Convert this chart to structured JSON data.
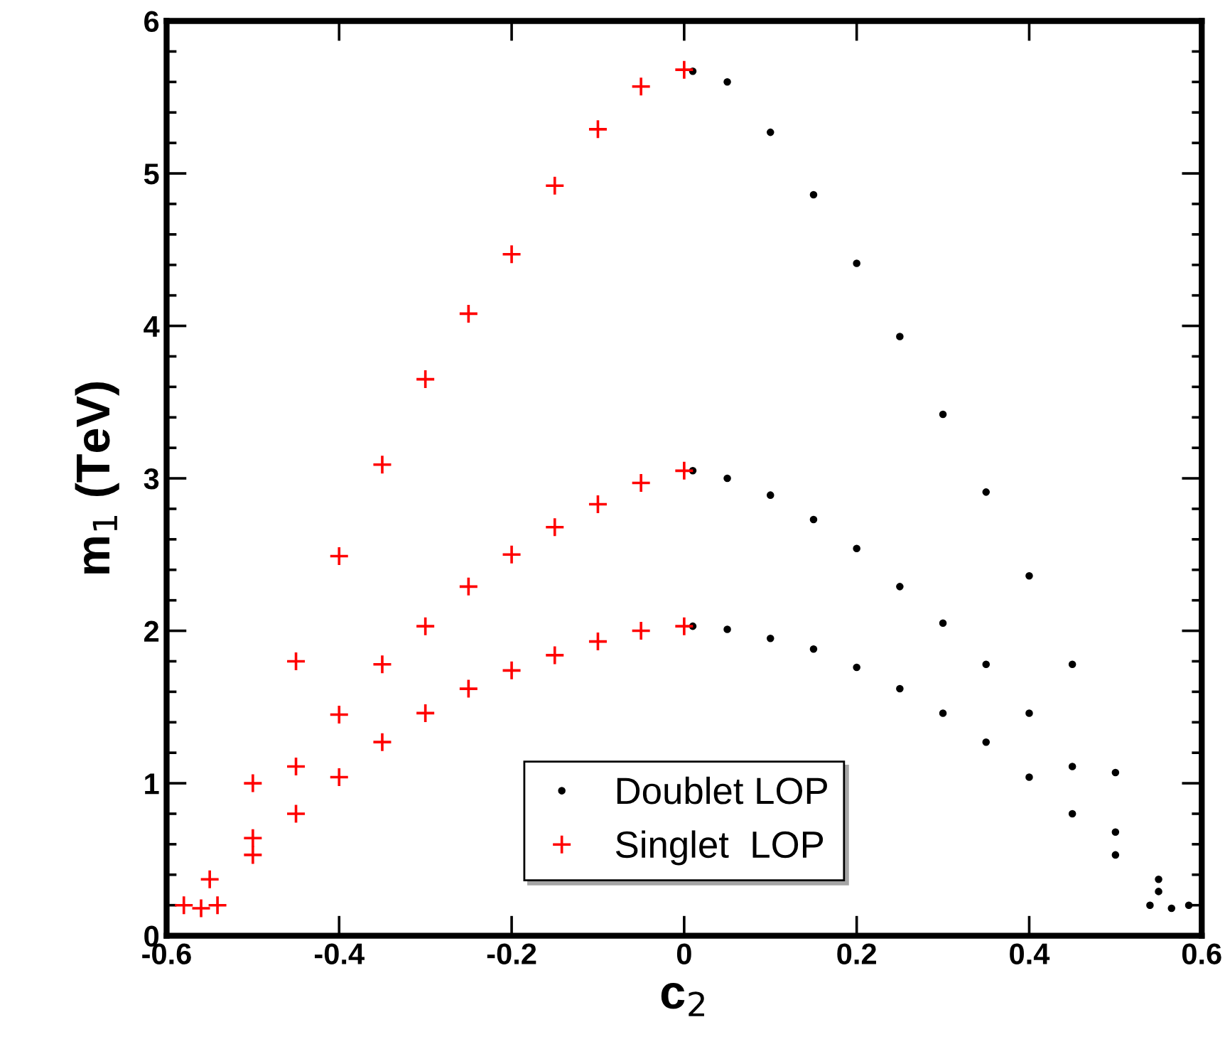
{
  "chart_data": {
    "type": "scatter",
    "xlabel": "c$_{2}$",
    "ylabel": "m$_{1}$ (TeV)",
    "xlim": [
      -0.6,
      0.6
    ],
    "ylim": [
      0,
      6
    ],
    "xticks": [
      -0.6,
      -0.4,
      -0.2,
      0,
      0.2,
      0.4,
      0.6
    ],
    "yticks": [
      0,
      1,
      2,
      3,
      4,
      5,
      6
    ],
    "grid": false,
    "legend": "bottom",
    "series": [
      {
        "name": "Doublet LOP",
        "color": "#000000",
        "marker": "circle",
        "x": [
          0.01,
          0.05,
          0.1,
          0.15,
          0.2,
          0.25,
          0.3,
          0.35,
          0.4,
          0.45,
          0.5,
          0.55,
          0.585
        ],
        "values": [
          5.67,
          5.6,
          5.27,
          4.86,
          4.41,
          3.93,
          3.42,
          2.91,
          2.36,
          1.78,
          1.07,
          0.37,
          0.2
        ]
      },
      {
        "color": "#000000",
        "marker": "circle",
        "x": [
          0.01,
          0.05,
          0.1,
          0.15,
          0.2,
          0.25,
          0.3,
          0.35,
          0.4,
          0.45,
          0.5,
          0.55,
          0.565
        ],
        "values": [
          3.05,
          3.0,
          2.89,
          2.73,
          2.54,
          2.29,
          2.05,
          1.78,
          1.46,
          1.11,
          0.68,
          0.29,
          0.18
        ]
      },
      {
        "color": "#000000",
        "marker": "circle",
        "x": [
          0.01,
          0.05,
          0.1,
          0.15,
          0.2,
          0.25,
          0.3,
          0.35,
          0.4,
          0.45,
          0.5,
          0.54
        ],
        "values": [
          2.03,
          2.01,
          1.95,
          1.88,
          1.76,
          1.62,
          1.46,
          1.27,
          1.04,
          0.8,
          0.53,
          0.2
        ]
      },
      {
        "name": "Singlet  LOP",
        "color": "#ff0000",
        "marker": "cross",
        "x": [
          -0.58,
          -0.55,
          -0.5,
          -0.45,
          -0.4,
          -0.35,
          -0.3,
          -0.25,
          -0.2,
          -0.15,
          -0.1,
          -0.05,
          0
        ],
        "values": [
          0.2,
          0.37,
          1.0,
          1.8,
          2.49,
          3.09,
          3.65,
          4.08,
          4.47,
          4.92,
          5.29,
          5.57,
          5.68
        ]
      },
      {
        "color": "#ff0000",
        "marker": "cross",
        "x": [
          -0.56,
          -0.5,
          -0.45,
          -0.4,
          -0.35,
          -0.3,
          -0.25,
          -0.2,
          -0.15,
          -0.1,
          -0.05,
          0
        ],
        "values": [
          0.18,
          0.64,
          1.11,
          1.45,
          1.78,
          2.03,
          2.29,
          2.5,
          2.68,
          2.83,
          2.97,
          3.05
        ]
      },
      {
        "color": "#ff0000",
        "marker": "cross",
        "x": [
          -0.541,
          -0.5,
          -0.45,
          -0.4,
          -0.35,
          -0.3,
          -0.25,
          -0.2,
          -0.15,
          -0.1,
          -0.05,
          0
        ],
        "values": [
          0.2,
          0.53,
          0.8,
          1.04,
          1.27,
          1.46,
          1.62,
          1.74,
          1.84,
          1.93,
          2.0,
          2.03
        ]
      }
    ]
  }
}
